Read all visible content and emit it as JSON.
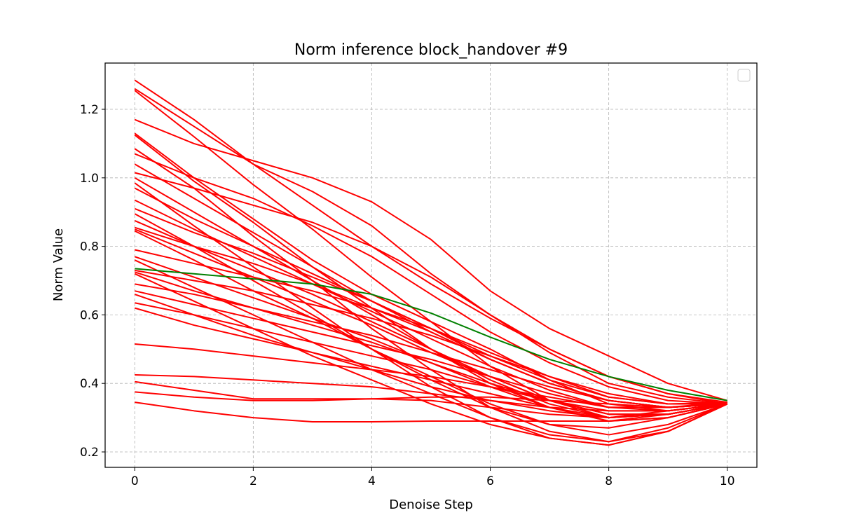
{
  "chart_data": {
    "type": "line",
    "title": "Norm inference block_handover #9",
    "xlabel": "Denoise Step",
    "ylabel": "Norm Value",
    "xlim": [
      -0.5,
      10.5
    ],
    "ylim": [
      0.155,
      1.335
    ],
    "xticks": [
      0,
      2,
      4,
      6,
      8,
      10
    ],
    "yticks": [
      0.2,
      0.4,
      0.6,
      0.8,
      1.0,
      1.2
    ],
    "xtick_labels": [
      "0",
      "2",
      "4",
      "6",
      "8",
      "10"
    ],
    "ytick_labels": [
      "0.2",
      "0.4",
      "0.6",
      "0.8",
      "1.0",
      "1.2"
    ],
    "grid": true,
    "legend": {
      "placement": "top-right",
      "entries": []
    },
    "x": [
      0,
      1,
      2,
      3,
      4,
      5,
      6,
      7,
      8,
      9,
      10
    ],
    "series": [
      {
        "color": "#ff0000",
        "values": [
          1.285,
          1.17,
          1.04,
          0.92,
          0.8,
          0.69,
          0.59,
          0.5,
          0.42,
          0.37,
          0.345
        ]
      },
      {
        "color": "#ff0000",
        "values": [
          1.26,
          1.15,
          1.04,
          0.96,
          0.86,
          0.72,
          0.6,
          0.49,
          0.4,
          0.36,
          0.34
        ]
      },
      {
        "color": "#ff0000",
        "values": [
          1.255,
          1.12,
          0.98,
          0.85,
          0.71,
          0.58,
          0.45,
          0.35,
          0.3,
          0.32,
          0.34
        ]
      },
      {
        "color": "#ff0000",
        "values": [
          1.17,
          1.1,
          1.05,
          1.0,
          0.93,
          0.82,
          0.67,
          0.56,
          0.48,
          0.4,
          0.35
        ]
      },
      {
        "color": "#ff0000",
        "values": [
          1.13,
          1.0,
          0.88,
          0.76,
          0.66,
          0.58,
          0.5,
          0.41,
          0.34,
          0.32,
          0.34
        ]
      },
      {
        "color": "#ff0000",
        "values": [
          1.125,
          0.99,
          0.87,
          0.74,
          0.62,
          0.5,
          0.4,
          0.33,
          0.29,
          0.3,
          0.34
        ]
      },
      {
        "color": "#ff0000",
        "values": [
          1.085,
          0.97,
          0.83,
          0.7,
          0.56,
          0.44,
          0.33,
          0.26,
          0.23,
          0.26,
          0.34
        ]
      },
      {
        "color": "#ff0000",
        "values": [
          1.07,
          1.0,
          0.94,
          0.86,
          0.77,
          0.66,
          0.55,
          0.46,
          0.39,
          0.35,
          0.34
        ]
      },
      {
        "color": "#ff0000",
        "values": [
          1.04,
          0.94,
          0.84,
          0.74,
          0.64,
          0.55,
          0.47,
          0.4,
          0.35,
          0.33,
          0.34
        ]
      },
      {
        "color": "#ff0000",
        "values": [
          1.015,
          0.97,
          0.92,
          0.87,
          0.8,
          0.71,
          0.6,
          0.5,
          0.42,
          0.37,
          0.34
        ]
      },
      {
        "color": "#ff0000",
        "values": [
          1.0,
          0.9,
          0.8,
          0.7,
          0.6,
          0.5,
          0.41,
          0.34,
          0.3,
          0.31,
          0.34
        ]
      },
      {
        "color": "#ff0000",
        "values": [
          0.985,
          0.86,
          0.74,
          0.62,
          0.5,
          0.39,
          0.3,
          0.24,
          0.22,
          0.26,
          0.34
        ]
      },
      {
        "color": "#ff0000",
        "values": [
          0.97,
          0.88,
          0.8,
          0.72,
          0.64,
          0.56,
          0.48,
          0.41,
          0.36,
          0.34,
          0.345
        ]
      },
      {
        "color": "#ff0000",
        "values": [
          0.935,
          0.85,
          0.77,
          0.69,
          0.61,
          0.53,
          0.45,
          0.38,
          0.33,
          0.33,
          0.34
        ]
      },
      {
        "color": "#ff0000",
        "values": [
          0.91,
          0.84,
          0.78,
          0.71,
          0.64,
          0.56,
          0.47,
          0.4,
          0.35,
          0.33,
          0.34
        ]
      },
      {
        "color": "#ff0000",
        "values": [
          0.895,
          0.8,
          0.7,
          0.6,
          0.5,
          0.41,
          0.33,
          0.28,
          0.27,
          0.3,
          0.34
        ]
      },
      {
        "color": "#ff0000",
        "values": [
          0.875,
          0.8,
          0.73,
          0.66,
          0.58,
          0.5,
          0.42,
          0.35,
          0.31,
          0.31,
          0.34
        ]
      },
      {
        "color": "#ff0000",
        "values": [
          0.855,
          0.8,
          0.75,
          0.69,
          0.62,
          0.55,
          0.47,
          0.4,
          0.35,
          0.33,
          0.34
        ]
      },
      {
        "color": "#ff0000",
        "values": [
          0.85,
          0.78,
          0.71,
          0.64,
          0.57,
          0.49,
          0.42,
          0.35,
          0.31,
          0.31,
          0.34
        ]
      },
      {
        "color": "#ff0000",
        "values": [
          0.845,
          0.76,
          0.67,
          0.59,
          0.5,
          0.42,
          0.34,
          0.28,
          0.25,
          0.28,
          0.34
        ]
      },
      {
        "color": "#ff0000",
        "values": [
          0.79,
          0.75,
          0.71,
          0.67,
          0.62,
          0.56,
          0.49,
          0.42,
          0.36,
          0.34,
          0.34
        ]
      },
      {
        "color": "#ff0000",
        "values": [
          0.77,
          0.71,
          0.65,
          0.59,
          0.53,
          0.46,
          0.39,
          0.33,
          0.29,
          0.3,
          0.34
        ]
      },
      {
        "color": "#ff0000",
        "values": [
          0.76,
          0.68,
          0.6,
          0.52,
          0.44,
          0.37,
          0.3,
          0.25,
          0.23,
          0.27,
          0.34
        ]
      },
      {
        "color": "#ff0000",
        "values": [
          0.73,
          0.7,
          0.67,
          0.63,
          0.59,
          0.54,
          0.48,
          0.42,
          0.37,
          0.34,
          0.34
        ]
      },
      {
        "color": "#ff0000",
        "values": [
          0.725,
          0.67,
          0.62,
          0.57,
          0.52,
          0.46,
          0.4,
          0.35,
          0.31,
          0.31,
          0.34
        ]
      },
      {
        "color": "#ff0000",
        "values": [
          0.72,
          0.64,
          0.56,
          0.48,
          0.41,
          0.34,
          0.28,
          0.24,
          0.22,
          0.26,
          0.34
        ]
      },
      {
        "color": "#ff0000",
        "values": [
          0.69,
          0.66,
          0.62,
          0.58,
          0.54,
          0.49,
          0.44,
          0.39,
          0.35,
          0.33,
          0.34
        ]
      },
      {
        "color": "#ff0000",
        "values": [
          0.67,
          0.63,
          0.59,
          0.55,
          0.51,
          0.47,
          0.42,
          0.37,
          0.33,
          0.32,
          0.34
        ]
      },
      {
        "color": "#ff0000",
        "values": [
          0.66,
          0.6,
          0.54,
          0.49,
          0.44,
          0.39,
          0.35,
          0.32,
          0.3,
          0.31,
          0.34
        ]
      },
      {
        "color": "#ff0000",
        "values": [
          0.635,
          0.6,
          0.56,
          0.52,
          0.48,
          0.44,
          0.39,
          0.35,
          0.32,
          0.32,
          0.34
        ]
      },
      {
        "color": "#ff0000",
        "values": [
          0.62,
          0.57,
          0.53,
          0.49,
          0.45,
          0.41,
          0.37,
          0.33,
          0.3,
          0.31,
          0.34
        ]
      },
      {
        "color": "#ff0000",
        "values": [
          0.515,
          0.5,
          0.48,
          0.46,
          0.44,
          0.42,
          0.39,
          0.36,
          0.33,
          0.33,
          0.34
        ]
      },
      {
        "color": "#ff0000",
        "values": [
          0.425,
          0.42,
          0.41,
          0.4,
          0.39,
          0.37,
          0.35,
          0.33,
          0.32,
          0.32,
          0.34
        ]
      },
      {
        "color": "#ff0000",
        "values": [
          0.405,
          0.38,
          0.355,
          0.355,
          0.355,
          0.35,
          0.33,
          0.31,
          0.3,
          0.31,
          0.34
        ]
      },
      {
        "color": "#ff0000",
        "values": [
          0.375,
          0.36,
          0.35,
          0.35,
          0.355,
          0.36,
          0.36,
          0.35,
          0.34,
          0.33,
          0.345
        ]
      },
      {
        "color": "#ff0000",
        "values": [
          0.345,
          0.32,
          0.3,
          0.288,
          0.288,
          0.29,
          0.29,
          0.29,
          0.29,
          0.31,
          0.34
        ]
      },
      {
        "color": "#008000",
        "values": [
          0.735,
          0.72,
          0.705,
          0.69,
          0.66,
          0.605,
          0.535,
          0.47,
          0.42,
          0.38,
          0.35
        ]
      }
    ]
  }
}
